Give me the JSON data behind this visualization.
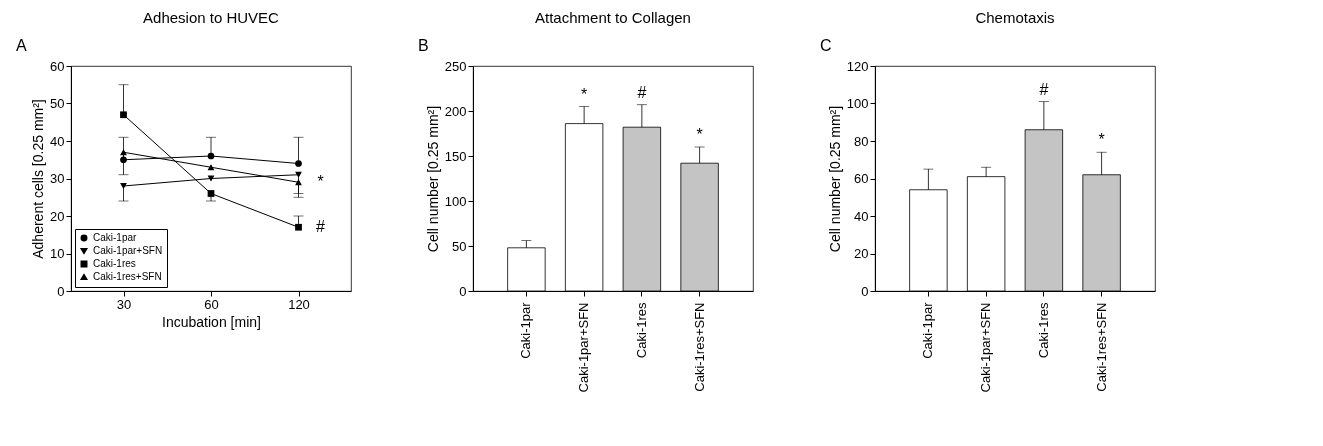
{
  "chart_data": [
    {
      "type": "line",
      "title": "Adhesion to HUVEC",
      "xlabel": "Incubation [min]",
      "ylabel": "Adherent cells [0.25 mm²]",
      "categories": [
        "30",
        "60",
        "120"
      ],
      "ylim": [
        0,
        60
      ],
      "yticks": [
        0,
        10,
        20,
        30,
        40,
        50,
        60
      ],
      "grid": false,
      "legend": "bottom left",
      "series": [
        {
          "name": "Caki-1par",
          "color": "#000000",
          "marker": "circle",
          "values": [
            35,
            36,
            34
          ],
          "errors": [
            [
              35,
              41
            ],
            [
              36,
              41
            ],
            [
              34,
              41
            ]
          ]
        },
        {
          "name": "Caki-1par+SFN",
          "color": "#000000",
          "marker": "triangle-down",
          "values": [
            28,
            30,
            31
          ],
          "errors": [
            [
              24,
              28
            ],
            null,
            [
              26,
              31
            ]
          ]
        },
        {
          "name": "Caki-1res",
          "color": "#000000",
          "marker": "square",
          "values": [
            47,
            26,
            17
          ],
          "errors": [
            [
              47,
              55
            ],
            [
              24,
              26
            ],
            [
              17,
              20
            ]
          ]
        },
        {
          "name": "Caki-1res+SFN",
          "color": "#000000",
          "marker": "triangle",
          "values": [
            37,
            33,
            29
          ],
          "errors": [
            [
              31,
              37
            ],
            null,
            [
              25,
              29
            ]
          ]
        }
      ],
      "annotations": [
        "A",
        {
          "text": "*",
          "x": "120",
          "y": 29
        },
        {
          "text": "#",
          "x": "120",
          "y": 17
        }
      ]
    },
    {
      "type": "bar",
      "title": "Attachment to Collagen",
      "ylabel": "Cell number [0.25 mm²]",
      "categories": [
        "Caki-1par",
        "Caki-1par+SFN",
        "Caki-1res",
        "Caki-1res+SFN"
      ],
      "values": [
        48,
        186,
        182,
        142
      ],
      "colors": [
        "#ffffff",
        "#ffffff",
        "#c4c4c4",
        "#c4c4c4"
      ],
      "errors": [
        [
          48,
          56
        ],
        [
          186,
          205
        ],
        [
          182,
          207
        ],
        [
          142,
          160
        ]
      ],
      "ylim": [
        0,
        250
      ],
      "yticks": [
        0,
        50,
        100,
        150,
        200,
        250
      ],
      "grid": false,
      "annotations": [
        "B",
        {
          "text": "*",
          "x": "Caki-1par+SFN",
          "y": 186
        },
        {
          "text": "#",
          "x": "Caki-1res",
          "y": 182
        },
        {
          "text": "*",
          "x": "Caki-1res+SFN",
          "y": 142
        }
      ]
    },
    {
      "type": "bar",
      "title": "Chemotaxis",
      "ylabel": "Cell number [0.25 mm²]",
      "categories": [
        "Caki-1par",
        "Caki-1par+SFN",
        "Caki-1res",
        "Caki-1res+SFN"
      ],
      "values": [
        54,
        61,
        86,
        62
      ],
      "colors": [
        "#ffffff",
        "#ffffff",
        "#c4c4c4",
        "#c4c4c4"
      ],
      "errors": [
        [
          54,
          65
        ],
        [
          61,
          66
        ],
        [
          86,
          101
        ],
        [
          62,
          74
        ]
      ],
      "ylim": [
        0,
        120
      ],
      "yticks": [
        0,
        20,
        40,
        60,
        80,
        100,
        120
      ],
      "grid": false,
      "annotations": [
        "C",
        {
          "text": "#",
          "x": "Caki-1res",
          "y": 86
        },
        {
          "text": "*",
          "x": "Caki-1res+SFN",
          "y": 62
        }
      ]
    }
  ]
}
